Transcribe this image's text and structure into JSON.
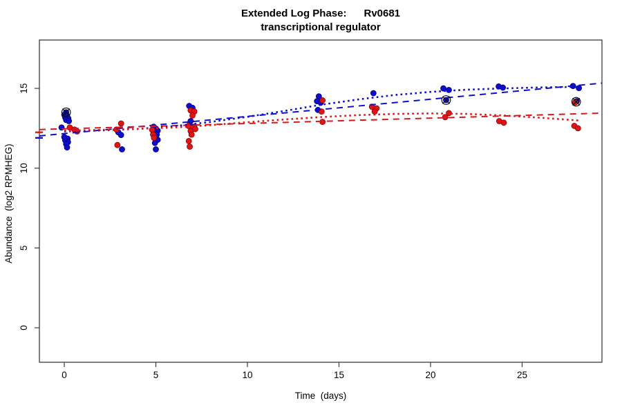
{
  "chart_data": {
    "type": "scatter",
    "title": "Extended Log Phase:      Rv0681",
    "subtitle": "transcriptional regulator",
    "xlabel": "Time  (days)",
    "ylabel": "Abundance  (log2 RPMHEG)",
    "xlim": [
      -1.36,
      29.36
    ],
    "ylim": [
      -2.16,
      18.03
    ],
    "xticks": [
      0,
      5,
      10,
      15,
      20,
      25
    ],
    "yticks": [
      0,
      5,
      10,
      15
    ],
    "grid": false,
    "legend": "none",
    "colors": {
      "blue_fill": "#0d0dcc",
      "blue_stroke": "#000080",
      "red_fill": "#e01414",
      "red_stroke": "#8b0000",
      "frame": "#3a3a3a",
      "marker_ring": "#111111"
    },
    "series": [
      {
        "name": "blue-samples",
        "color": "#0d0dcc",
        "points": [
          [
            0.1,
            13.5
          ],
          [
            0.0,
            13.35
          ],
          [
            0.15,
            13.28
          ],
          [
            0.05,
            13.18
          ],
          [
            0.22,
            13.12
          ],
          [
            0.1,
            13.02
          ],
          [
            0.25,
            12.95
          ],
          [
            -0.15,
            12.55
          ],
          [
            0.0,
            11.95
          ],
          [
            0.18,
            11.85
          ],
          [
            0.05,
            11.75
          ],
          [
            0.2,
            11.63
          ],
          [
            0.1,
            11.52
          ],
          [
            0.15,
            11.3
          ],
          [
            2.95,
            12.25
          ],
          [
            3.1,
            12.08
          ],
          [
            3.15,
            11.18
          ],
          [
            4.88,
            12.6
          ],
          [
            5.0,
            12.48
          ],
          [
            5.1,
            12.35
          ],
          [
            4.95,
            12.22
          ],
          [
            5.05,
            12.1
          ],
          [
            5.0,
            11.95
          ],
          [
            5.1,
            11.78
          ],
          [
            4.95,
            11.58
          ],
          [
            5.0,
            11.18
          ],
          [
            6.82,
            13.9
          ],
          [
            7.0,
            13.78
          ],
          [
            6.9,
            12.95
          ],
          [
            6.85,
            12.72
          ],
          [
            7.1,
            12.6
          ],
          [
            13.9,
            14.5
          ],
          [
            13.8,
            14.2
          ],
          [
            14.0,
            14.1
          ],
          [
            13.85,
            13.65
          ],
          [
            16.88,
            14.7
          ],
          [
            20.7,
            15.0
          ],
          [
            21.0,
            14.9
          ],
          [
            20.85,
            14.27
          ],
          [
            23.72,
            15.12
          ],
          [
            23.95,
            15.05
          ],
          [
            27.78,
            15.15
          ],
          [
            28.1,
            15.02
          ],
          [
            27.98,
            14.2
          ]
        ]
      },
      {
        "name": "red-samples",
        "color": "#e01414",
        "points": [
          [
            0.3,
            12.55
          ],
          [
            0.55,
            12.42
          ],
          [
            0.7,
            12.3
          ],
          [
            3.1,
            12.8
          ],
          [
            2.85,
            12.42
          ],
          [
            2.9,
            11.45
          ],
          [
            4.8,
            12.4
          ],
          [
            4.85,
            12.1
          ],
          [
            4.9,
            11.9
          ],
          [
            6.9,
            13.62
          ],
          [
            7.1,
            13.55
          ],
          [
            7.0,
            13.3
          ],
          [
            6.78,
            12.65
          ],
          [
            7.05,
            12.55
          ],
          [
            7.15,
            12.45
          ],
          [
            6.9,
            12.33
          ],
          [
            6.95,
            12.1
          ],
          [
            6.8,
            11.7
          ],
          [
            6.85,
            11.35
          ],
          [
            14.1,
            14.25
          ],
          [
            14.05,
            13.55
          ],
          [
            14.1,
            12.9
          ],
          [
            16.8,
            13.85
          ],
          [
            17.05,
            13.75
          ],
          [
            16.95,
            13.55
          ],
          [
            21.0,
            13.45
          ],
          [
            20.8,
            13.2
          ],
          [
            23.75,
            12.95
          ],
          [
            24.0,
            12.85
          ],
          [
            27.85,
            12.65
          ],
          [
            28.05,
            12.5
          ],
          [
            27.9,
            14.12
          ]
        ]
      }
    ],
    "circled_points": [
      [
        0.1,
        13.5
      ],
      [
        20.85,
        14.27
      ],
      [
        27.95,
        14.16
      ]
    ],
    "trend_lines": [
      {
        "name": "blue-linear-fit",
        "style": "longdash",
        "color": "#0d0dcc",
        "x": [
          -1.36,
          29.36
        ],
        "y": [
          12.02,
          15.33
        ]
      },
      {
        "name": "red-linear-fit",
        "style": "longdash",
        "color": "#e01414",
        "x": [
          -1.36,
          29.36
        ],
        "y": [
          12.42,
          13.45
        ]
      },
      {
        "name": "blue-spline-fit",
        "style": "dotted",
        "color": "#0d0dcc",
        "points": [
          [
            0,
            12.3
          ],
          [
            2,
            12.36
          ],
          [
            4,
            12.46
          ],
          [
            6,
            12.63
          ],
          [
            8,
            12.9
          ],
          [
            10,
            13.22
          ],
          [
            12,
            13.58
          ],
          [
            14,
            13.97
          ],
          [
            16,
            14.3
          ],
          [
            18,
            14.58
          ],
          [
            20,
            14.78
          ],
          [
            22,
            14.92
          ],
          [
            24,
            15.0
          ],
          [
            26,
            15.06
          ],
          [
            28.2,
            15.1
          ]
        ]
      },
      {
        "name": "red-spline-fit",
        "style": "dotted",
        "color": "#e01414",
        "points": [
          [
            0,
            12.35
          ],
          [
            2,
            12.4
          ],
          [
            4,
            12.46
          ],
          [
            6,
            12.55
          ],
          [
            8,
            12.7
          ],
          [
            10,
            12.88
          ],
          [
            12,
            13.05
          ],
          [
            14,
            13.2
          ],
          [
            16,
            13.32
          ],
          [
            18,
            13.4
          ],
          [
            20,
            13.43
          ],
          [
            22,
            13.4
          ],
          [
            24,
            13.3
          ],
          [
            26,
            13.16
          ],
          [
            28.2,
            12.98
          ]
        ]
      }
    ],
    "axis_rug_marks": [
      {
        "color": "#e01414",
        "value": 12.25
      },
      {
        "color": "#0d0dcc",
        "value": 11.9
      }
    ]
  }
}
